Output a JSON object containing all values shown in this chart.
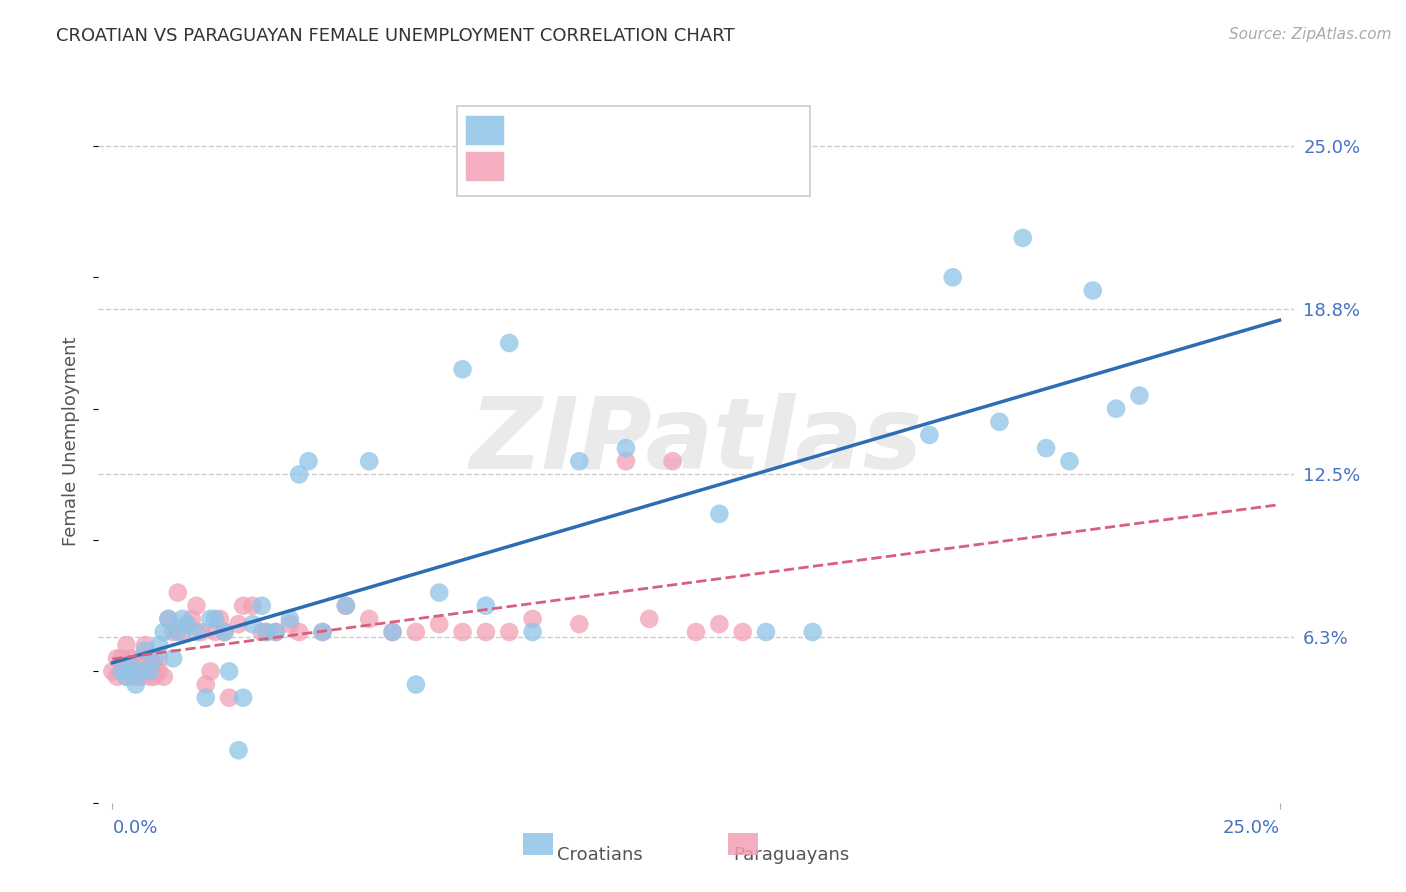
{
  "title": "CROATIAN VS PARAGUAYAN FEMALE UNEMPLOYMENT CORRELATION CHART",
  "source": "Source: ZipAtlas.com",
  "ylabel": "Female Unemployment",
  "ytick_labels": [
    "25.0%",
    "18.8%",
    "12.5%",
    "6.3%"
  ],
  "ytick_values": [
    0.25,
    0.188,
    0.125,
    0.063
  ],
  "xlim": [
    0.0,
    0.25
  ],
  "ylim": [
    0.0,
    0.275
  ],
  "watermark": "ZIPatlas",
  "croatian_color": "#8ec4e8",
  "paraguayan_color": "#f2a0b5",
  "croatian_line_color": "#2e6db4",
  "paraguayan_line_color": "#d9607a",
  "axis_label_color": "#4472c4",
  "bg_color": "#ffffff",
  "grid_color": "#cccccc",
  "croatians_x": [
    0.002,
    0.003,
    0.004,
    0.005,
    0.006,
    0.007,
    0.008,
    0.009,
    0.01,
    0.011,
    0.012,
    0.013,
    0.014,
    0.015,
    0.016,
    0.018,
    0.02,
    0.021,
    0.022,
    0.024,
    0.025,
    0.027,
    0.028,
    0.03,
    0.032,
    0.033,
    0.035,
    0.038,
    0.04,
    0.042,
    0.045,
    0.05,
    0.055,
    0.06,
    0.065,
    0.07,
    0.075,
    0.08,
    0.085,
    0.09,
    0.1,
    0.11,
    0.13,
    0.14,
    0.15,
    0.175,
    0.18,
    0.19,
    0.195,
    0.2,
    0.205,
    0.21,
    0.215,
    0.22
  ],
  "croatians_y": [
    0.05,
    0.048,
    0.052,
    0.045,
    0.05,
    0.058,
    0.05,
    0.055,
    0.06,
    0.065,
    0.07,
    0.055,
    0.065,
    0.07,
    0.068,
    0.065,
    0.04,
    0.07,
    0.07,
    0.065,
    0.05,
    0.02,
    0.04,
    0.068,
    0.075,
    0.065,
    0.065,
    0.07,
    0.125,
    0.13,
    0.065,
    0.075,
    0.13,
    0.065,
    0.045,
    0.08,
    0.165,
    0.075,
    0.175,
    0.065,
    0.13,
    0.135,
    0.11,
    0.065,
    0.065,
    0.14,
    0.2,
    0.145,
    0.215,
    0.135,
    0.13,
    0.195,
    0.15,
    0.155
  ],
  "paraguayans_x": [
    0.0,
    0.001,
    0.001,
    0.002,
    0.002,
    0.003,
    0.003,
    0.003,
    0.004,
    0.004,
    0.005,
    0.005,
    0.006,
    0.006,
    0.007,
    0.007,
    0.008,
    0.008,
    0.009,
    0.009,
    0.01,
    0.01,
    0.011,
    0.012,
    0.013,
    0.014,
    0.015,
    0.016,
    0.017,
    0.018,
    0.019,
    0.02,
    0.021,
    0.022,
    0.023,
    0.024,
    0.025,
    0.027,
    0.028,
    0.03,
    0.032,
    0.033,
    0.035,
    0.038,
    0.04,
    0.045,
    0.05,
    0.055,
    0.06,
    0.065,
    0.07,
    0.075,
    0.08,
    0.085,
    0.09,
    0.1,
    0.11,
    0.115,
    0.12,
    0.125,
    0.13,
    0.135
  ],
  "paraguayans_y": [
    0.05,
    0.048,
    0.055,
    0.05,
    0.055,
    0.048,
    0.052,
    0.06,
    0.05,
    0.055,
    0.048,
    0.052,
    0.048,
    0.055,
    0.05,
    0.06,
    0.048,
    0.055,
    0.048,
    0.052,
    0.05,
    0.055,
    0.048,
    0.07,
    0.065,
    0.08,
    0.065,
    0.068,
    0.07,
    0.075,
    0.065,
    0.045,
    0.05,
    0.065,
    0.07,
    0.065,
    0.04,
    0.068,
    0.075,
    0.075,
    0.065,
    0.065,
    0.065,
    0.068,
    0.065,
    0.065,
    0.075,
    0.07,
    0.065,
    0.065,
    0.068,
    0.065,
    0.065,
    0.065,
    0.07,
    0.068,
    0.13,
    0.07,
    0.13,
    0.065,
    0.068,
    0.065
  ]
}
